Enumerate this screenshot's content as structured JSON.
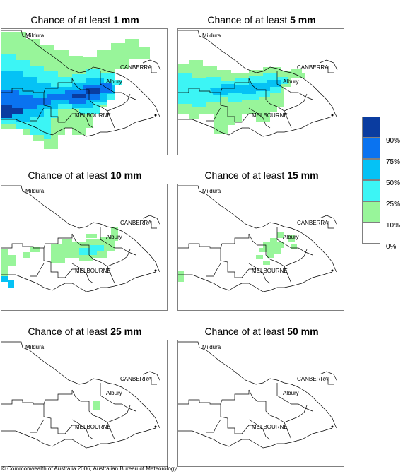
{
  "colors": {
    "c10": "#98f59a",
    "c25": "#3cf5f5",
    "c50": "#05c2f5",
    "c75": "#0a73f0",
    "c90": "#0a3ca0",
    "outline": "#000000"
  },
  "panels": [
    {
      "prefix": "Chance of at least ",
      "amount": "1 mm"
    },
    {
      "prefix": "Chance of at least ",
      "amount": "5 mm"
    },
    {
      "prefix": "Chance of at least ",
      "amount": "10 mm"
    },
    {
      "prefix": "Chance of at least ",
      "amount": "15 mm"
    },
    {
      "prefix": "Chance of at least ",
      "amount": "25 mm"
    },
    {
      "prefix": "Chance of at least ",
      "amount": "50 mm"
    }
  ],
  "cities": {
    "mildura": "Mildura",
    "canberra": "CANBERRA",
    "albury": "Albury",
    "melbourne": "MELBOURNE"
  },
  "legend": {
    "labels": [
      "90%",
      "75%",
      "50%",
      "25%",
      "10%",
      "0%"
    ]
  },
  "copyright": "© Commonwealth of Australia 2006, Australian Bureau of Meteorology"
}
